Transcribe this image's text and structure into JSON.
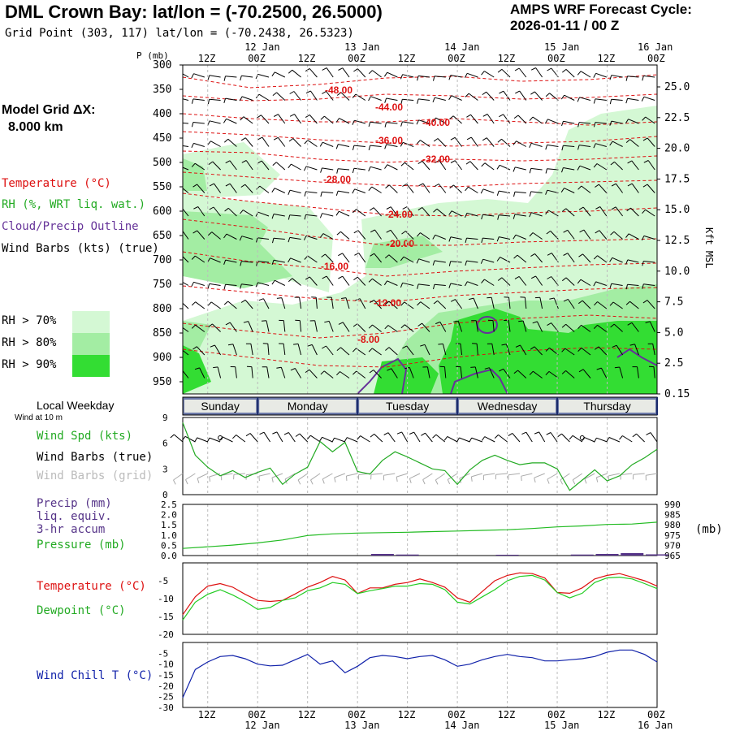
{
  "header": {
    "title": "DML Crown Bay:  lat/lon = (-70.2500, 26.5000)",
    "subtitle": "Grid Point (303, 117) lat/lon = (-70.2438, 26.5323)",
    "cycle_line1": "AMPS WRF Forecast Cycle:",
    "cycle_line2": "2026-01-11 / 00  Z"
  },
  "colors": {
    "temperature": "#dd1111",
    "rh": "#22aa22",
    "cloud": "#663399",
    "wind": "#000000",
    "wind_grid": "#aaaaaa",
    "precip": "#553388",
    "pressure": "#22bb22",
    "dewpoint": "#22cc22",
    "windchill": "#1122aa",
    "rh70": "#d4f8d4",
    "rh80": "#a3eda3",
    "rh90": "#33dd33",
    "weekday_bar": "#6b78a8"
  },
  "left_labels": {
    "model_grid": "Model Grid ΔX:",
    "model_grid_value": "8.000 km",
    "temperature": "Temperature (°C)",
    "rh": "RH (%, WRT liq. wat.)",
    "cloud": "Cloud/Precip Outline",
    "wind_barbs": "Wind Barbs (kts) (true)",
    "rh70": "RH > 70%",
    "rh80": "RH > 80%",
    "rh90": "RH > 90%",
    "local_weekday": "Local Weekday",
    "wind_at": "Wind at 10 m",
    "wind_spd": "Wind Spd (kts)",
    "wind_barbs_true": "Wind Barbs (true)",
    "wind_barbs_grid": "Wind Barbs (grid)",
    "precip": "Precip (mm)",
    "liq_equiv": "liq. equiv.",
    "accum": "3-hr accum",
    "pressure": "Pressure (mb)",
    "temperature2": "Temperature (°C)",
    "dewpoint": "Dewpoint (°C)",
    "windchill": "Wind Chill T (°C)",
    "mb_unit": "(mb)",
    "kft_msl": "Kft MSL"
  },
  "chart_data": [
    {
      "type": "heatmap",
      "name": "cross-section",
      "ylabel": "P (mb)",
      "pressure_levels": [
        "300",
        "350",
        "400",
        "450",
        "500",
        "550",
        "600",
        "650",
        "700",
        "750",
        "800",
        "850",
        "900",
        "950"
      ],
      "right_axis": [
        "25.0",
        "22.5",
        "20.0",
        "17.5",
        "15.0",
        "12.5",
        "10.0",
        "7.5",
        "5.0",
        "2.5",
        "0.15"
      ],
      "time_ticks_top": [
        "12Z",
        "00Z",
        "12Z",
        "00Z",
        "12Z",
        "00Z",
        "12Z",
        "00Z",
        "12Z",
        "00Z"
      ],
      "date_ticks": [
        "12 Jan",
        "13 Jan",
        "14 Jan",
        "15 Jan",
        "16 Jan"
      ],
      "temperature_contours": [
        "-48.00",
        "-44.00",
        "-40.00",
        "-36.00",
        "-32.00",
        "-28.00",
        "-24.00",
        "-20.00",
        "-16.00",
        "-12.00",
        "-8.00"
      ],
      "xlim_hours": [
        6,
        120
      ]
    },
    {
      "type": "line",
      "name": "wind",
      "weekdays": [
        "Sunday",
        "Monday",
        "Tuesday",
        "Wednesday",
        "Thursday"
      ],
      "ylim": [
        0,
        9
      ],
      "yticks": [
        "9",
        "6",
        "3",
        "0"
      ],
      "x": [
        6,
        9,
        12,
        15,
        18,
        21,
        24,
        27,
        30,
        33,
        36,
        39,
        42,
        45,
        48,
        51,
        54,
        57,
        60,
        63,
        66,
        69,
        72,
        75,
        78,
        81,
        84,
        87,
        90,
        93,
        96,
        99,
        102,
        105,
        108,
        111,
        114,
        117,
        120
      ],
      "series": [
        {
          "name": "Wind Spd (kts)",
          "values": [
            8.4,
            4.6,
            3.2,
            2.2,
            2.8,
            2.0,
            2.6,
            3.1,
            1.2,
            2.4,
            3.2,
            6.2,
            5.0,
            6.1,
            2.7,
            2.4,
            4.0,
            5.0,
            4.4,
            3.7,
            3.0,
            2.8,
            1.2,
            2.9,
            4.0,
            4.6,
            4.0,
            3.5,
            3.7,
            3.7,
            3.0,
            0.5,
            1.7,
            2.9,
            1.6,
            2.2,
            3.5,
            4.3,
            5.3
          ]
        }
      ]
    },
    {
      "type": "line",
      "name": "precip-pressure",
      "left_ticks": [
        "2.5",
        "2.0",
        "1.5",
        "1.0",
        "0.5",
        "0.0"
      ],
      "right_ticks": [
        "990",
        "985",
        "980",
        "975",
        "970",
        "965"
      ],
      "ylim_precip": [
        0,
        2.5
      ],
      "ylim_pressure": [
        965,
        990
      ],
      "x": [
        6,
        12,
        18,
        24,
        30,
        36,
        42,
        48,
        54,
        60,
        66,
        72,
        78,
        84,
        90,
        96,
        102,
        108,
        114,
        120
      ],
      "series": [
        {
          "name": "Pressure (mb)",
          "values": [
            968.5,
            969.3,
            970.1,
            971.2,
            972.6,
            974.8,
            975.6,
            976.0,
            976.2,
            976.4,
            976.7,
            977.0,
            977.3,
            977.6,
            978.2,
            979.0,
            979.5,
            980.2,
            980.4,
            981.3
          ]
        },
        {
          "name": "Precip (mm)",
          "values": [
            0,
            0,
            0,
            0,
            0,
            0,
            0,
            0,
            0.08,
            0.05,
            0,
            0,
            0,
            0.04,
            0,
            0,
            0.05,
            0.08,
            0.12,
            0.06
          ]
        }
      ]
    },
    {
      "type": "line",
      "name": "temperature-dewpoint",
      "yticks": [
        "-5",
        "-10",
        "-15",
        "-20"
      ],
      "ylim": [
        -20,
        0
      ],
      "x": [
        6,
        9,
        12,
        15,
        18,
        21,
        24,
        27,
        30,
        33,
        36,
        39,
        42,
        45,
        48,
        51,
        54,
        57,
        60,
        63,
        66,
        69,
        72,
        75,
        78,
        81,
        84,
        87,
        90,
        93,
        96,
        99,
        102,
        105,
        108,
        111,
        114,
        117,
        120
      ],
      "series": [
        {
          "name": "Temperature (°C)",
          "values": [
            -14.5,
            -9.5,
            -6.5,
            -5.8,
            -6.8,
            -8.8,
            -10.5,
            -10.8,
            -10.5,
            -8.7,
            -6.8,
            -5.5,
            -3.8,
            -4.8,
            -8.6,
            -7.0,
            -7.0,
            -6.0,
            -5.5,
            -4.5,
            -5.5,
            -6.8,
            -9.8,
            -11.0,
            -8.0,
            -5.0,
            -3.5,
            -2.8,
            -3.0,
            -4.2,
            -8.3,
            -8.5,
            -7.0,
            -4.5,
            -3.5,
            -3.0,
            -4.0,
            -5.0,
            -6.5
          ]
        },
        {
          "name": "Dewpoint (°C)",
          "values": [
            -16.0,
            -11.0,
            -8.8,
            -7.5,
            -9.0,
            -10.8,
            -13.0,
            -12.5,
            -10.5,
            -9.8,
            -7.8,
            -7.0,
            -5.5,
            -6.0,
            -8.6,
            -7.8,
            -7.2,
            -6.5,
            -6.5,
            -5.8,
            -6.0,
            -7.5,
            -11.0,
            -11.5,
            -9.5,
            -7.5,
            -5.0,
            -3.8,
            -3.5,
            -4.8,
            -8.3,
            -9.8,
            -8.5,
            -5.5,
            -4.2,
            -4.0,
            -4.5,
            -5.8,
            -7.2
          ]
        }
      ]
    },
    {
      "type": "line",
      "name": "wind-chill",
      "yticks": [
        "-5",
        "-10",
        "-15",
        "-20",
        "-25",
        "-30"
      ],
      "ylim": [
        -30,
        0
      ],
      "x": [
        6,
        9,
        12,
        15,
        18,
        21,
        24,
        27,
        30,
        33,
        36,
        39,
        42,
        45,
        48,
        51,
        54,
        57,
        60,
        63,
        66,
        69,
        72,
        75,
        78,
        81,
        84,
        87,
        90,
        93,
        96,
        99,
        102,
        105,
        108,
        111,
        114,
        117,
        120
      ],
      "series": [
        {
          "name": "Wind Chill T (°C)",
          "values": [
            -25.5,
            -12.5,
            -9.0,
            -6.5,
            -6.0,
            -7.5,
            -10.0,
            -10.8,
            -10.5,
            -8.0,
            -5.5,
            -10.0,
            -8.5,
            -14.0,
            -11.0,
            -7.0,
            -6.0,
            -6.5,
            -7.5,
            -6.5,
            -6.0,
            -8.0,
            -11.0,
            -10.0,
            -8.0,
            -6.5,
            -5.5,
            -6.5,
            -7.0,
            -8.5,
            -8.5,
            -8.0,
            -7.5,
            -6.5,
            -4.5,
            -3.5,
            -3.5,
            -5.5,
            -9.0
          ]
        }
      ]
    }
  ],
  "bottom_axis": {
    "time_ticks": [
      "12Z",
      "00Z",
      "12Z",
      "00Z",
      "12Z",
      "00Z",
      "12Z",
      "00Z",
      "12Z",
      "00Z"
    ],
    "date_ticks": [
      "12 Jan",
      "13 Jan",
      "14 Jan",
      "15 Jan",
      "16 Jan"
    ]
  }
}
